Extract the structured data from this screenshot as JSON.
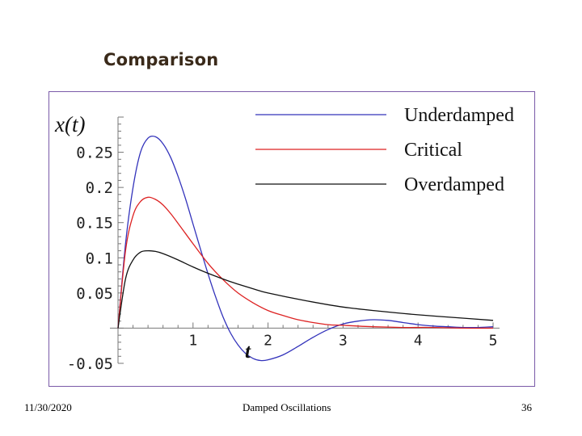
{
  "slide": {
    "title": "Comparison",
    "footer_date": "11/30/2020",
    "footer_center": "Damped Oscillations",
    "footer_page": "36"
  },
  "chart_data": {
    "type": "line",
    "xlabel": "t",
    "ylabel": "x(t)",
    "xlim": [
      0,
      5
    ],
    "ylim": [
      -0.05,
      0.3
    ],
    "x_ticks": [
      1,
      2,
      3,
      4,
      5
    ],
    "x_tick_labels": [
      "1",
      "2",
      "3",
      "4",
      "5"
    ],
    "y_ticks": [
      0.25,
      0.2,
      0.15,
      0.1,
      0.05,
      -0.05
    ],
    "y_tick_labels": [
      "0.25",
      "0.2",
      "0.15",
      "0.1",
      "0.05",
      "-0.05"
    ],
    "grid": false,
    "legend_position": "top-right",
    "series": [
      {
        "name": "Underdamped",
        "color": "#3333bb",
        "x": [
          0,
          0.1,
          0.2,
          0.3,
          0.4,
          0.5,
          0.6,
          0.7,
          0.8,
          0.9,
          1.0,
          1.1,
          1.2,
          1.3,
          1.4,
          1.5,
          1.6,
          1.7,
          1.8,
          1.9,
          2.0,
          2.2,
          2.4,
          2.6,
          2.8,
          3.0,
          3.2,
          3.4,
          3.6,
          3.8,
          4.0,
          4.2,
          4.4,
          4.6,
          4.8,
          5.0
        ],
        "values": [
          0,
          0.12,
          0.2,
          0.25,
          0.27,
          0.272,
          0.262,
          0.243,
          0.216,
          0.184,
          0.148,
          0.112,
          0.077,
          0.045,
          0.016,
          -0.007,
          -0.024,
          -0.036,
          -0.043,
          -0.046,
          -0.045,
          -0.038,
          -0.026,
          -0.013,
          -0.002,
          0.006,
          0.01,
          0.012,
          0.011,
          0.008,
          0.005,
          0.003,
          0.002,
          0.001,
          0.001,
          0.002
        ]
      },
      {
        "name": "Critical",
        "color": "#dd2222",
        "x": [
          0,
          0.1,
          0.2,
          0.3,
          0.4,
          0.5,
          0.6,
          0.7,
          0.8,
          1.0,
          1.2,
          1.4,
          1.6,
          1.8,
          2.0,
          2.2,
          2.4,
          2.6,
          2.8,
          3.0,
          3.4,
          3.8,
          4.2,
          4.6,
          5.0
        ],
        "values": [
          0,
          0.11,
          0.16,
          0.18,
          0.186,
          0.183,
          0.175,
          0.163,
          0.149,
          0.12,
          0.092,
          0.069,
          0.05,
          0.036,
          0.025,
          0.018,
          0.012,
          0.008,
          0.005,
          0.004,
          0.002,
          0.001,
          0.001,
          0.0,
          0.0
        ]
      },
      {
        "name": "Overdamped",
        "color": "#111111",
        "x": [
          0,
          0.1,
          0.2,
          0.3,
          0.4,
          0.5,
          0.6,
          0.8,
          1.0,
          1.2,
          1.5,
          1.8,
          2.0,
          2.5,
          3.0,
          3.5,
          4.0,
          4.5,
          5.0
        ],
        "values": [
          0,
          0.07,
          0.097,
          0.108,
          0.11,
          0.109,
          0.106,
          0.097,
          0.087,
          0.078,
          0.066,
          0.056,
          0.05,
          0.039,
          0.03,
          0.024,
          0.019,
          0.015,
          0.011
        ]
      }
    ]
  }
}
